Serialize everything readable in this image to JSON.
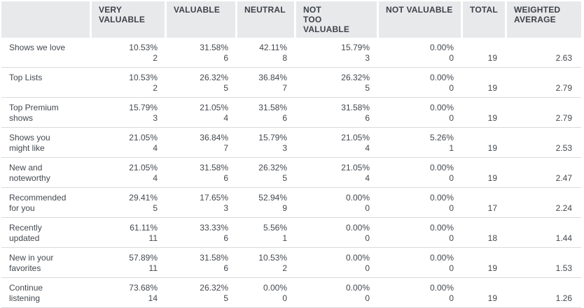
{
  "table": {
    "header": {
      "columns": [
        "",
        "VERY\nVALUABLE",
        "VALUABLE",
        "NEUTRAL",
        "NOT\nTOO VALUABLE",
        "NOT VALUABLE",
        "TOTAL",
        "WEIGHTED\nAVERAGE"
      ]
    },
    "rows": [
      {
        "label": "Shows we love",
        "responses": [
          {
            "percent": "10.53%",
            "count": "2"
          },
          {
            "percent": "31.58%",
            "count": "6"
          },
          {
            "percent": "42.11%",
            "count": "8"
          },
          {
            "percent": "15.79%",
            "count": "3"
          },
          {
            "percent": "0.00%",
            "count": "0"
          }
        ],
        "total": "19",
        "weighted_average": "2.63"
      },
      {
        "label": "Top Lists",
        "responses": [
          {
            "percent": "10.53%",
            "count": "2"
          },
          {
            "percent": "26.32%",
            "count": "5"
          },
          {
            "percent": "36.84%",
            "count": "7"
          },
          {
            "percent": "26.32%",
            "count": "5"
          },
          {
            "percent": "0.00%",
            "count": "0"
          }
        ],
        "total": "19",
        "weighted_average": "2.79"
      },
      {
        "label": "Top Premium shows",
        "responses": [
          {
            "percent": "15.79%",
            "count": "3"
          },
          {
            "percent": "21.05%",
            "count": "4"
          },
          {
            "percent": "31.58%",
            "count": "6"
          },
          {
            "percent": "31.58%",
            "count": "6"
          },
          {
            "percent": "0.00%",
            "count": "0"
          }
        ],
        "total": "19",
        "weighted_average": "2.79"
      },
      {
        "label": "Shows you might like",
        "responses": [
          {
            "percent": "21.05%",
            "count": "4"
          },
          {
            "percent": "36.84%",
            "count": "7"
          },
          {
            "percent": "15.79%",
            "count": "3"
          },
          {
            "percent": "21.05%",
            "count": "4"
          },
          {
            "percent": "5.26%",
            "count": "1"
          }
        ],
        "total": "19",
        "weighted_average": "2.53"
      },
      {
        "label": "New and noteworthy",
        "responses": [
          {
            "percent": "21.05%",
            "count": "4"
          },
          {
            "percent": "31.58%",
            "count": "6"
          },
          {
            "percent": "26.32%",
            "count": "5"
          },
          {
            "percent": "21.05%",
            "count": "4"
          },
          {
            "percent": "0.00%",
            "count": "0"
          }
        ],
        "total": "19",
        "weighted_average": "2.47"
      },
      {
        "label": "Recommended for you",
        "responses": [
          {
            "percent": "29.41%",
            "count": "5"
          },
          {
            "percent": "17.65%",
            "count": "3"
          },
          {
            "percent": "52.94%",
            "count": "9"
          },
          {
            "percent": "0.00%",
            "count": "0"
          },
          {
            "percent": "0.00%",
            "count": "0"
          }
        ],
        "total": "17",
        "weighted_average": "2.24"
      },
      {
        "label": "Recently updated",
        "responses": [
          {
            "percent": "61.11%",
            "count": "11"
          },
          {
            "percent": "33.33%",
            "count": "6"
          },
          {
            "percent": "5.56%",
            "count": "1"
          },
          {
            "percent": "0.00%",
            "count": "0"
          },
          {
            "percent": "0.00%",
            "count": "0"
          }
        ],
        "total": "18",
        "weighted_average": "1.44"
      },
      {
        "label": "New in your favorites",
        "responses": [
          {
            "percent": "57.89%",
            "count": "11"
          },
          {
            "percent": "31.58%",
            "count": "6"
          },
          {
            "percent": "10.53%",
            "count": "2"
          },
          {
            "percent": "0.00%",
            "count": "0"
          },
          {
            "percent": "0.00%",
            "count": "0"
          }
        ],
        "total": "19",
        "weighted_average": "1.53"
      },
      {
        "label": "Continue listening",
        "responses": [
          {
            "percent": "73.68%",
            "count": "14"
          },
          {
            "percent": "26.32%",
            "count": "5"
          },
          {
            "percent": "0.00%",
            "count": "0"
          },
          {
            "percent": "0.00%",
            "count": "0"
          },
          {
            "percent": "0.00%",
            "count": "0"
          }
        ],
        "total": "19",
        "weighted_average": "1.26"
      }
    ]
  },
  "colors": {
    "header_background": "#e8e9eb",
    "text": "#43484e",
    "row_separator": "#d8dadc"
  },
  "chart_data": {
    "type": "table",
    "columns": [
      "",
      "VERY VALUABLE",
      "VALUABLE",
      "NEUTRAL",
      "NOT TOO VALUABLE",
      "NOT VALUABLE",
      "TOTAL",
      "WEIGHTED AVERAGE"
    ],
    "answer_options": [
      "VERY VALUABLE",
      "VALUABLE",
      "NEUTRAL",
      "NOT TOO VALUABLE",
      "NOT VALUABLE"
    ],
    "rows": [
      {
        "label": "Shows we love",
        "percents": [
          10.53,
          31.58,
          42.11,
          15.79,
          0.0
        ],
        "counts": [
          2,
          6,
          8,
          3,
          0
        ],
        "total": 19,
        "weighted_average": 2.63
      },
      {
        "label": "Top Lists",
        "percents": [
          10.53,
          26.32,
          36.84,
          26.32,
          0.0
        ],
        "counts": [
          2,
          5,
          7,
          5,
          0
        ],
        "total": 19,
        "weighted_average": 2.79
      },
      {
        "label": "Top Premium shows",
        "percents": [
          15.79,
          21.05,
          31.58,
          31.58,
          0.0
        ],
        "counts": [
          3,
          4,
          6,
          6,
          0
        ],
        "total": 19,
        "weighted_average": 2.79
      },
      {
        "label": "Shows you might like",
        "percents": [
          21.05,
          36.84,
          15.79,
          21.05,
          5.26
        ],
        "counts": [
          4,
          7,
          3,
          4,
          1
        ],
        "total": 19,
        "weighted_average": 2.53
      },
      {
        "label": "New and noteworthy",
        "percents": [
          21.05,
          31.58,
          26.32,
          21.05,
          0.0
        ],
        "counts": [
          4,
          6,
          5,
          4,
          0
        ],
        "total": 19,
        "weighted_average": 2.47
      },
      {
        "label": "Recommended for you",
        "percents": [
          29.41,
          17.65,
          52.94,
          0.0,
          0.0
        ],
        "counts": [
          5,
          3,
          9,
          0,
          0
        ],
        "total": 17,
        "weighted_average": 2.24
      },
      {
        "label": "Recently updated",
        "percents": [
          61.11,
          33.33,
          5.56,
          0.0,
          0.0
        ],
        "counts": [
          11,
          6,
          1,
          0,
          0
        ],
        "total": 18,
        "weighted_average": 1.44
      },
      {
        "label": "New in your favorites",
        "percents": [
          57.89,
          31.58,
          10.53,
          0.0,
          0.0
        ],
        "counts": [
          11,
          6,
          2,
          0,
          0
        ],
        "total": 19,
        "weighted_average": 1.53
      },
      {
        "label": "Continue listening",
        "percents": [
          73.68,
          26.32,
          0.0,
          0.0,
          0.0
        ],
        "counts": [
          14,
          5,
          0,
          0,
          0
        ],
        "total": 19,
        "weighted_average": 1.26
      }
    ]
  }
}
